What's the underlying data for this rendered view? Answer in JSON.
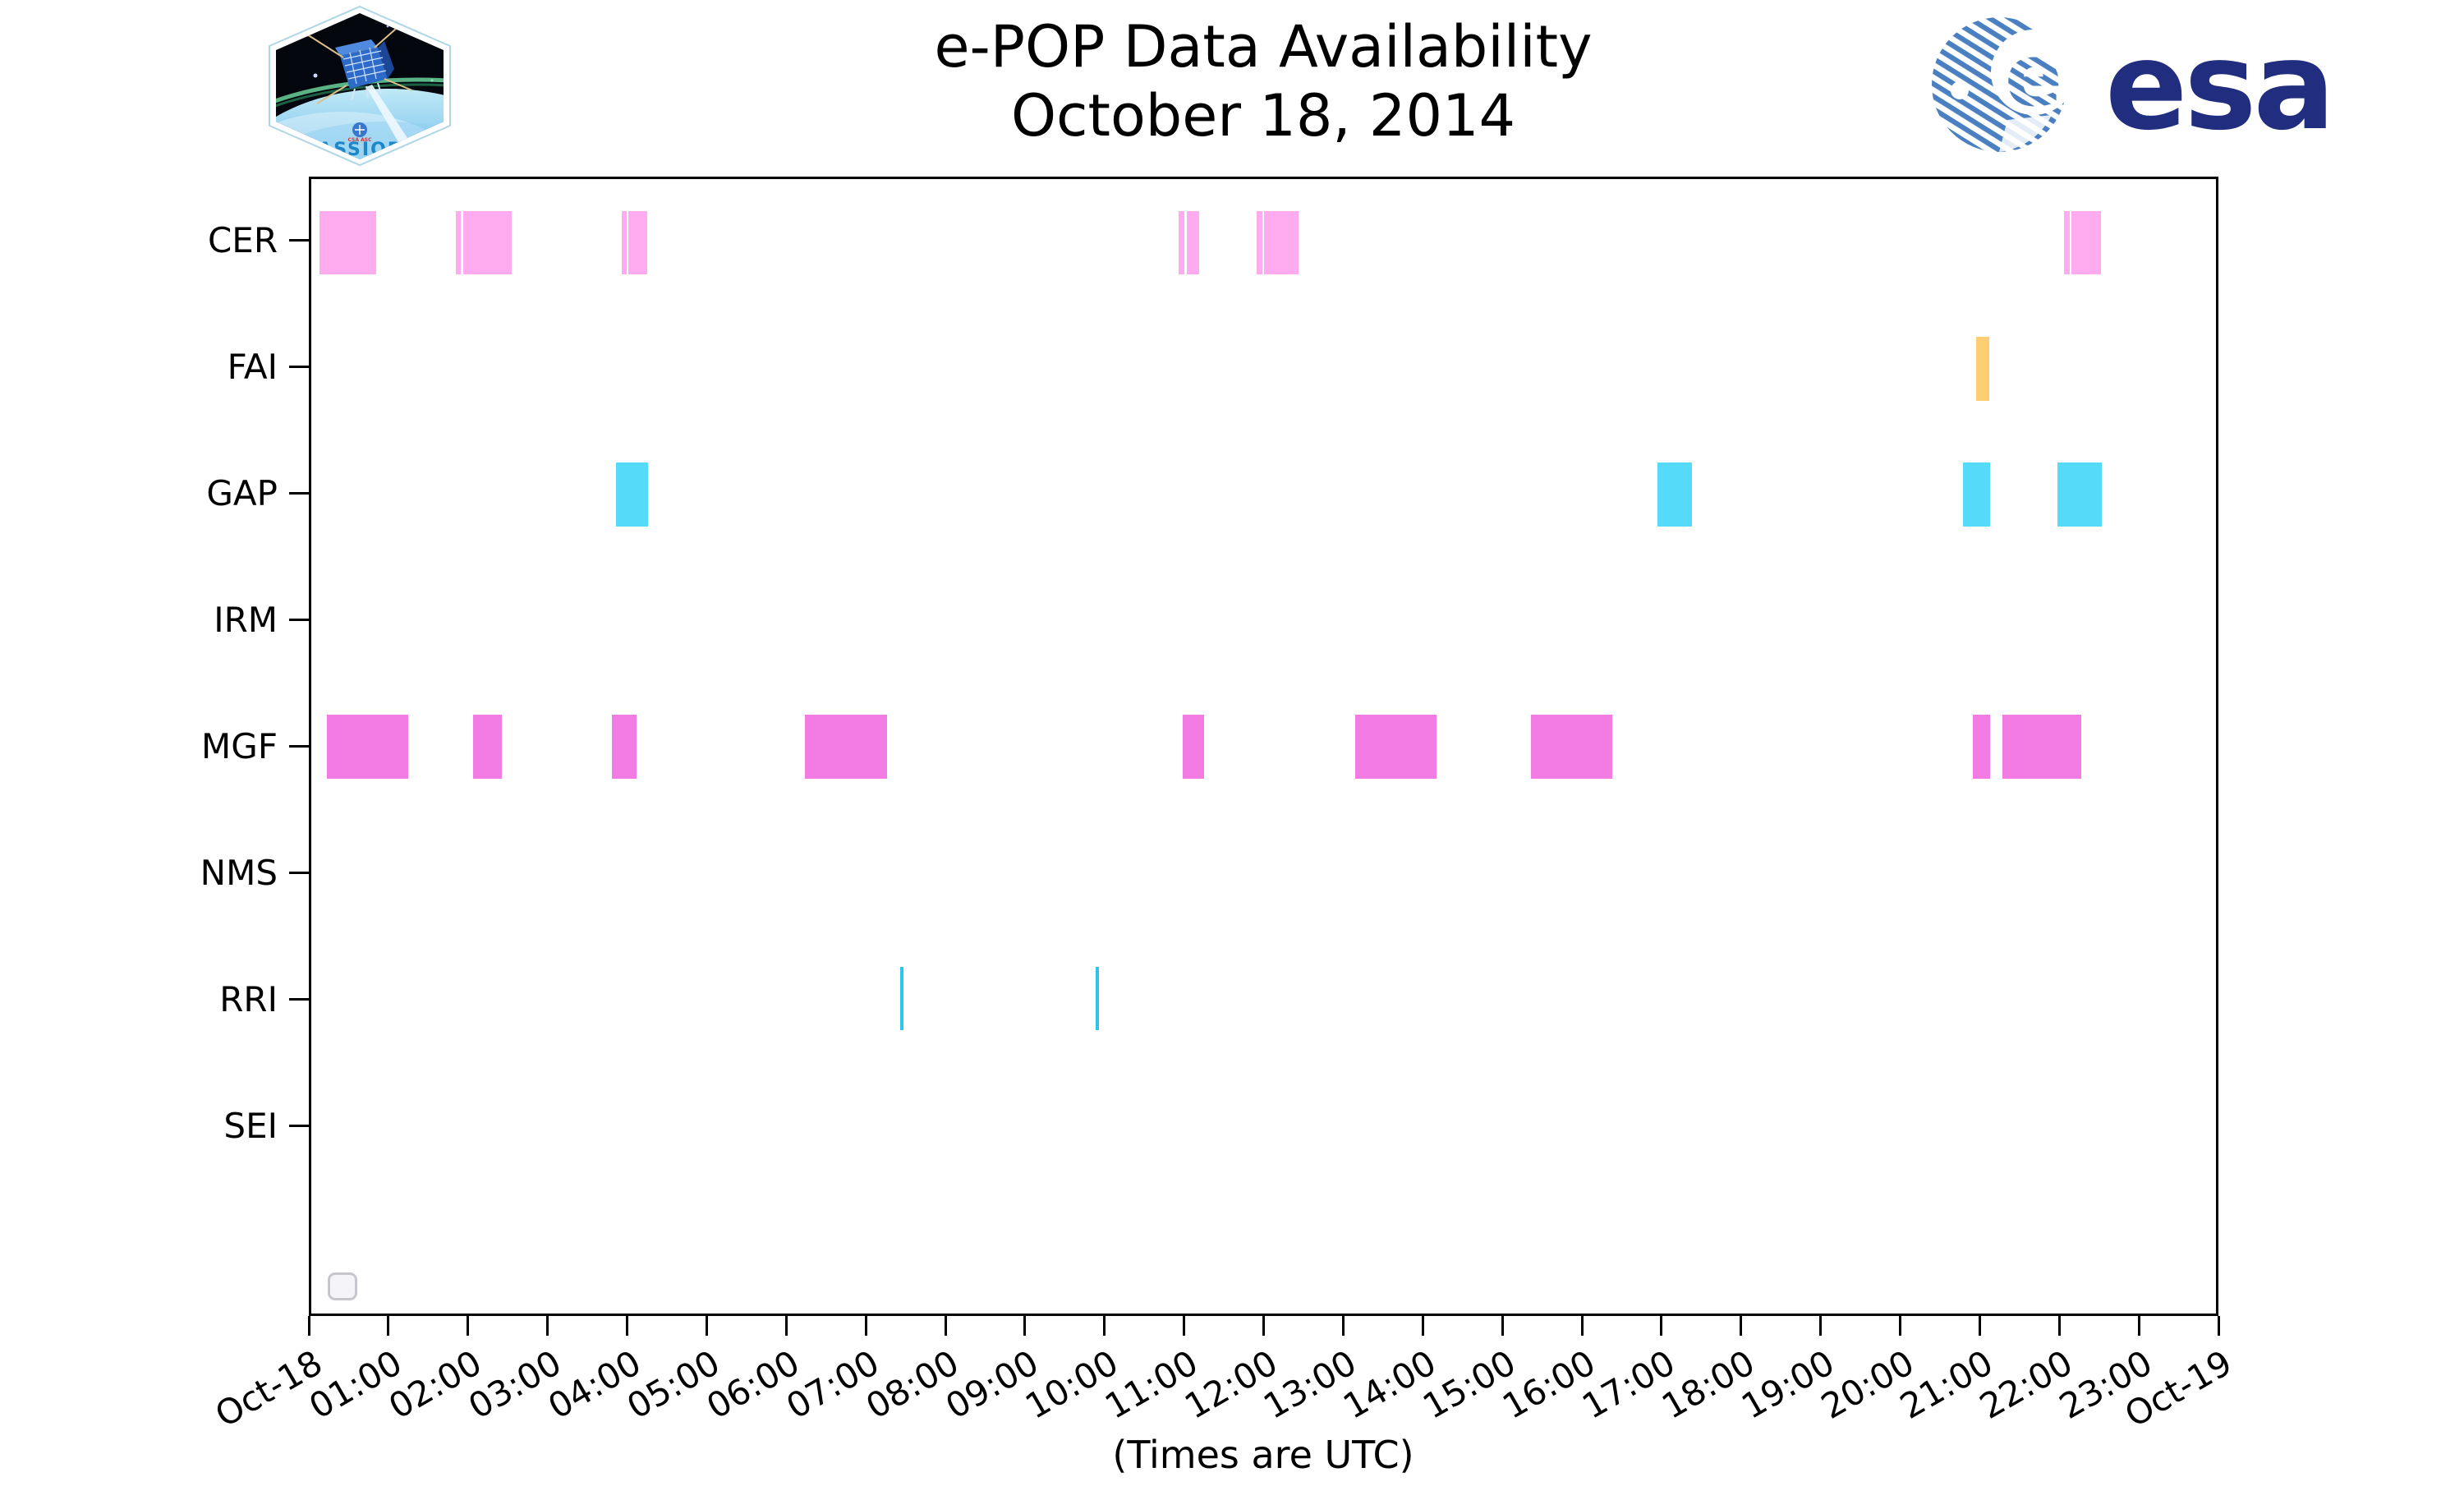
{
  "header": {
    "title_line1": "e-POP Data Availability",
    "title_line2": "October 18, 2014",
    "patch_label": "CASSIOPE",
    "esa_wordmark": "esa"
  },
  "chart_data": {
    "type": "timeline",
    "title": "e-POP Data Availability",
    "subtitle": "October 18, 2014",
    "xlabel": "(Times are UTC)",
    "x_axis": {
      "range_hours": [
        0,
        24
      ],
      "tick_labels": [
        "Oct-18",
        "01:00",
        "02:00",
        "03:00",
        "04:00",
        "05:00",
        "06:00",
        "07:00",
        "08:00",
        "09:00",
        "10:00",
        "11:00",
        "12:00",
        "13:00",
        "14:00",
        "15:00",
        "16:00",
        "17:00",
        "18:00",
        "19:00",
        "20:00",
        "21:00",
        "22:00",
        "23:00",
        "Oct-19"
      ]
    },
    "grid": false,
    "legend": null,
    "rows": [
      {
        "label": "CER",
        "color": "#ffabf0",
        "segments_hours": [
          [
            0.1,
            0.82
          ],
          [
            1.82,
            1.88
          ],
          [
            1.91,
            2.52
          ],
          [
            3.9,
            3.96
          ],
          [
            3.98,
            4.22
          ],
          [
            10.9,
            10.97
          ],
          [
            11.0,
            11.16
          ],
          [
            11.88,
            11.95
          ],
          [
            11.97,
            12.41
          ],
          [
            22.03,
            22.1
          ],
          [
            22.12,
            22.49
          ]
        ]
      },
      {
        "label": "FAI",
        "color": "#ffce73",
        "segments_hours": [
          [
            20.92,
            21.09
          ]
        ]
      },
      {
        "label": "GAP",
        "color": "#55dbf9",
        "segments_hours": [
          [
            3.83,
            4.23
          ],
          [
            16.92,
            17.35
          ],
          [
            20.76,
            21.1
          ],
          [
            21.95,
            22.5
          ]
        ]
      },
      {
        "label": "IRM",
        "color": null,
        "segments_hours": []
      },
      {
        "label": "MGF",
        "color": "#f37ce4",
        "segments_hours": [
          [
            0.2,
            1.22
          ],
          [
            2.03,
            2.39
          ],
          [
            3.78,
            4.09
          ],
          [
            6.2,
            7.24
          ],
          [
            10.95,
            11.22
          ],
          [
            13.12,
            14.14
          ],
          [
            15.33,
            16.35
          ],
          [
            20.88,
            21.1
          ],
          [
            21.25,
            22.25
          ]
        ]
      },
      {
        "label": "NMS",
        "color": null,
        "segments_hours": []
      },
      {
        "label": "RRI",
        "color": "#2cc6e9",
        "segments_hours": [
          [
            7.4,
            7.44
          ],
          [
            9.86,
            9.9
          ]
        ]
      },
      {
        "label": "SEI",
        "color": null,
        "segments_hours": []
      }
    ]
  },
  "colors": {
    "esa_navy": "#212e7f",
    "esa_stripe_blue": "#4a7fc1",
    "cassiope_blue": "#1b86c8",
    "axis_black": "#000000"
  }
}
